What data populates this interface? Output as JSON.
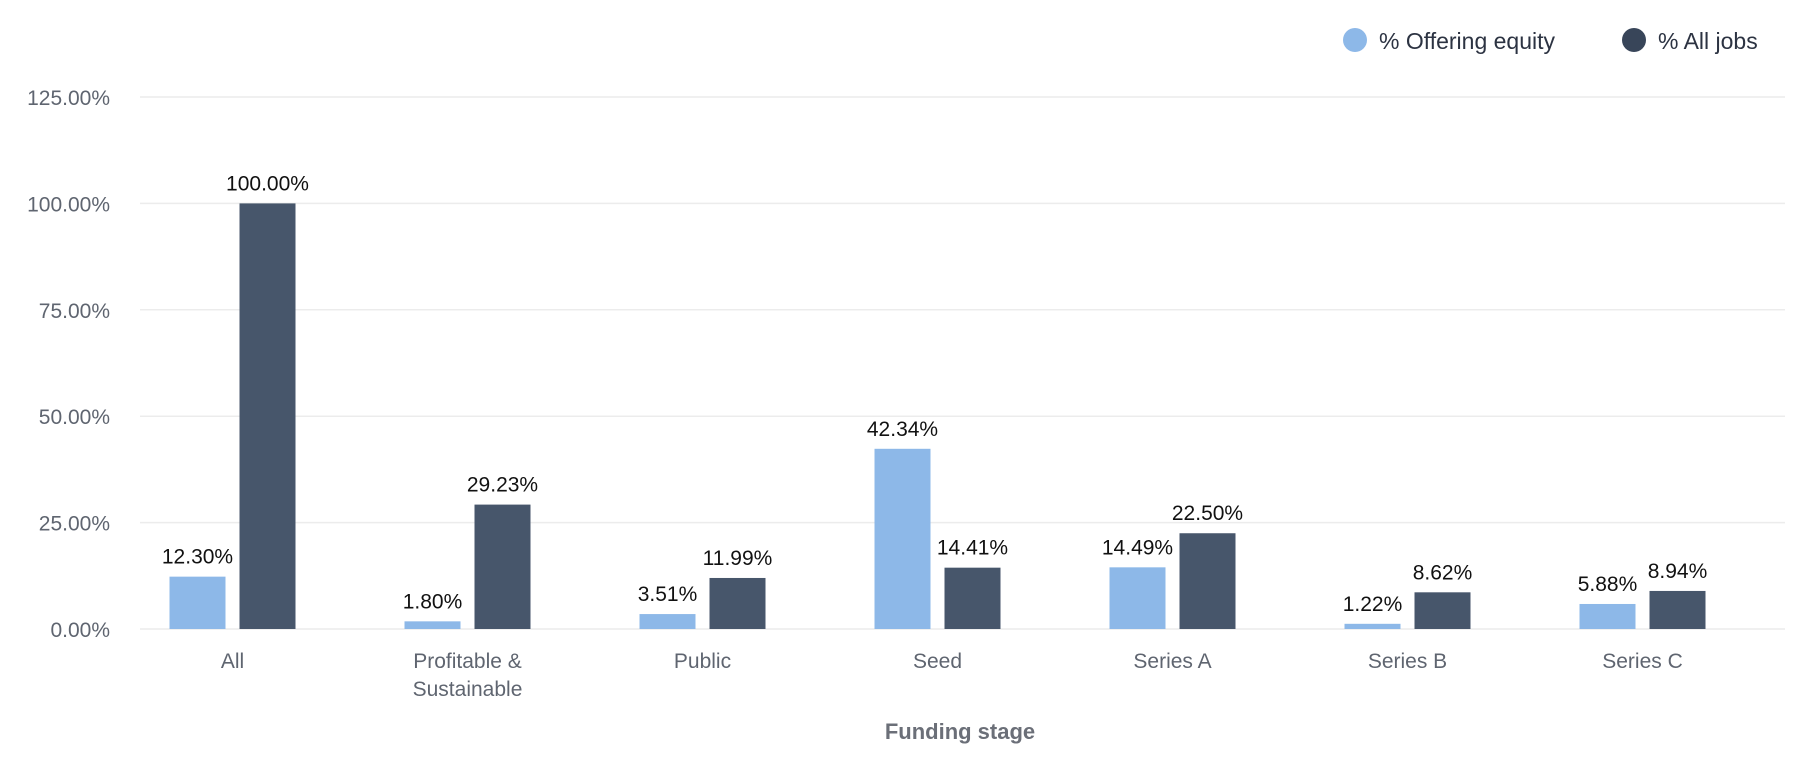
{
  "chart_data": {
    "type": "bar",
    "title": "",
    "xlabel": "Funding stage",
    "ylabel": "",
    "ylim": [
      0,
      125
    ],
    "yticks": [
      0,
      25,
      50,
      75,
      100,
      125
    ],
    "ytick_labels": [
      "0.00%",
      "25.00%",
      "50.00%",
      "75.00%",
      "100.00%",
      "125.00%"
    ],
    "grid": true,
    "legend_position": "top-right",
    "categories": [
      [
        "All"
      ],
      [
        "Profitable &",
        "Sustainable"
      ],
      [
        "Public"
      ],
      [
        "Seed"
      ],
      [
        "Series A"
      ],
      [
        "Series B"
      ],
      [
        "Series C"
      ]
    ],
    "series": [
      {
        "name": "% Offering equity",
        "color": "#8db8e8",
        "values": [
          12.3,
          1.8,
          3.51,
          42.34,
          14.49,
          1.22,
          5.88
        ],
        "labels": [
          "12.30%",
          "1.80%",
          "3.51%",
          "42.34%",
          "14.49%",
          "1.22%",
          "5.88%"
        ]
      },
      {
        "name": "% All jobs",
        "color": "#47566b",
        "values": [
          100.0,
          29.23,
          11.99,
          14.41,
          22.5,
          8.62,
          8.94
        ],
        "labels": [
          "100.00%",
          "29.23%",
          "11.99%",
          "14.41%",
          "22.50%",
          "8.62%",
          "8.94%"
        ]
      }
    ],
    "legend_marker_colors": [
      "#8db8e8",
      "#384559"
    ],
    "gridline_color": "#ececec"
  }
}
